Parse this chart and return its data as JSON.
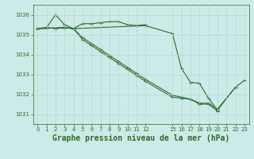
{
  "background_color": "#cceae7",
  "grid_color": "#b8d8d4",
  "line_color": "#2d6a2d",
  "marker": "+",
  "title": "Graphe pression niveau de la mer (hPa)",
  "title_fontsize": 7,
  "ylim": [
    1030.5,
    1036.5
  ],
  "xlim": [
    -0.5,
    23.5
  ],
  "yticks": [
    1031,
    1032,
    1033,
    1034,
    1035,
    1036
  ],
  "xticks": [
    0,
    1,
    2,
    3,
    4,
    5,
    6,
    7,
    8,
    9,
    10,
    11,
    12,
    15,
    16,
    17,
    18,
    19,
    20,
    21,
    22,
    23
  ],
  "series": [
    {
      "x": [
        0,
        1,
        2,
        3,
        4,
        5,
        6,
        7,
        8,
        9,
        10,
        11,
        12
      ],
      "y": [
        1035.3,
        1035.35,
        1035.3,
        1035.35,
        1035.3,
        1035.55,
        1035.55,
        1035.6,
        1035.65,
        1035.65,
        1035.5,
        1035.45,
        1035.5
      ]
    },
    {
      "x": [
        0,
        1,
        2,
        3,
        4,
        12,
        15,
        16,
        17,
        18,
        19,
        20,
        22,
        23
      ],
      "y": [
        1035.3,
        1035.35,
        1036.0,
        1035.5,
        1035.3,
        1035.45,
        1035.05,
        1033.3,
        1032.6,
        1032.55,
        1031.8,
        1031.2,
        1032.35,
        1032.7
      ]
    },
    {
      "x": [
        0,
        3,
        4,
        5,
        6,
        7,
        8,
        9,
        10,
        11,
        12,
        15,
        16,
        17,
        18,
        19,
        20,
        22
      ],
      "y": [
        1035.3,
        1035.35,
        1035.3,
        1034.85,
        1034.55,
        1034.25,
        1033.95,
        1033.65,
        1033.35,
        1033.05,
        1032.75,
        1031.95,
        1031.85,
        1031.75,
        1031.55,
        1031.55,
        1031.25,
        1032.35
      ]
    },
    {
      "x": [
        0,
        3,
        4,
        5,
        6,
        7,
        8,
        9,
        10,
        11,
        12,
        15,
        16,
        17,
        18,
        19,
        20
      ],
      "y": [
        1035.3,
        1035.35,
        1035.3,
        1034.75,
        1034.45,
        1034.15,
        1033.85,
        1033.55,
        1033.25,
        1032.95,
        1032.65,
        1031.85,
        1031.8,
        1031.75,
        1031.5,
        1031.5,
        1031.15
      ]
    }
  ]
}
